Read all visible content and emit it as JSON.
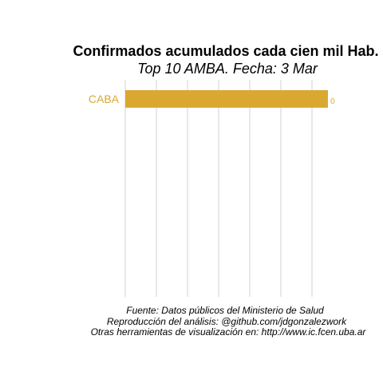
{
  "chart_data": {
    "type": "bar",
    "orientation": "horizontal",
    "title": "Confirmados acumulados cada cien mil Hab.",
    "subtitle": "Top 10 AMBA. Fecha: 3 Mar",
    "categories": [
      "CABA"
    ],
    "values": [
      0
    ],
    "value_labels": [
      "0"
    ],
    "bar_color": "#DAA831",
    "label_color": "#DAA831",
    "grid": true,
    "grid_color": "#d0d0d0",
    "xlabel": "",
    "ylabel": "",
    "caption": [
      "Fuente: Datos públicos del Ministerio de Salud",
      "Reproducción del análisis: @github.com/jdgonzalezwork",
      "Otras herramientas de visualización en: http://www.ic.fcen.uba.ar"
    ]
  }
}
